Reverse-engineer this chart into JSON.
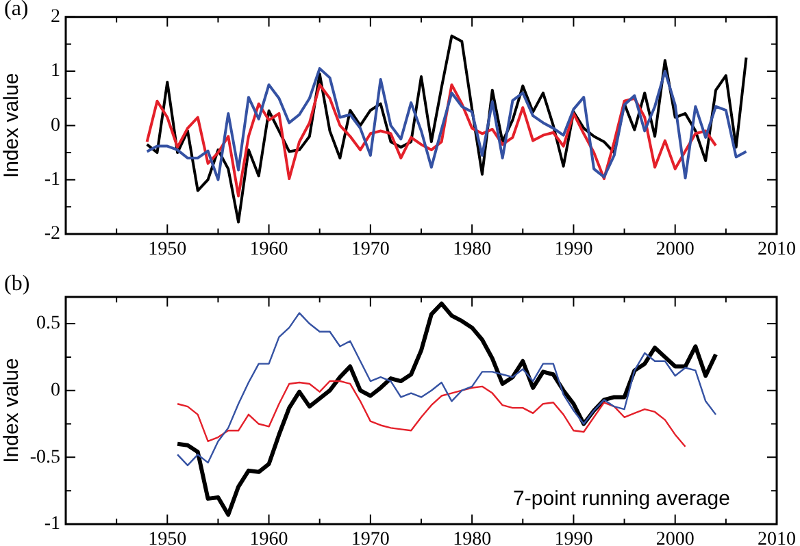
{
  "chart_data": [
    {
      "type": "line",
      "title": "(a)",
      "ylabel": "Index value",
      "x": [
        1948,
        1949,
        1950,
        1951,
        1952,
        1953,
        1954,
        1955,
        1956,
        1957,
        1958,
        1959,
        1960,
        1961,
        1962,
        1963,
        1964,
        1965,
        1966,
        1967,
        1968,
        1969,
        1970,
        1971,
        1972,
        1973,
        1974,
        1975,
        1976,
        1977,
        1978,
        1979,
        1980,
        1981,
        1982,
        1983,
        1984,
        1985,
        1986,
        1987,
        1988,
        1989,
        1990,
        1991,
        1992,
        1993,
        1994,
        1995,
        1996,
        1997,
        1998,
        1999,
        2000,
        2001,
        2002,
        2003,
        2004,
        2005,
        2006,
        2007
      ],
      "series": [
        {
          "color": "#000000",
          "values": [
            -0.35,
            -0.5,
            0.8,
            -0.5,
            -0.1,
            -1.2,
            -1.0,
            -0.45,
            -0.8,
            -1.78,
            -0.45,
            -0.93,
            0.27,
            -0.1,
            -0.48,
            -0.45,
            -0.2,
            0.95,
            -0.1,
            -0.6,
            0.28,
            0.0,
            0.28,
            0.4,
            -0.3,
            -0.4,
            -0.3,
            0.9,
            -0.3,
            0.7,
            1.65,
            1.55,
            0.3,
            -0.9,
            0.65,
            -0.3,
            0.1,
            0.73,
            0.25,
            0.6,
            0.0,
            -0.75,
            0.25,
            -0.05,
            -0.2,
            -0.3,
            -0.5,
            0.4,
            -0.08,
            0.6,
            -0.2,
            1.2,
            0.15,
            0.22,
            -0.1,
            -0.65,
            0.65,
            0.92,
            -0.4,
            1.25
          ]
        },
        {
          "color": "#e4202a",
          "values": [
            -0.3,
            0.45,
            0.15,
            -0.4,
            -0.05,
            0.15,
            -0.7,
            -0.5,
            -0.2,
            -1.3,
            -0.2,
            0.4,
            0.1,
            0.22,
            -0.98,
            -0.3,
            0.05,
            0.75,
            0.5,
            0.0,
            -0.2,
            -0.45,
            -0.15,
            -0.1,
            -0.15,
            -0.6,
            -0.22,
            -0.35,
            -0.45,
            -0.3,
            0.75,
            0.4,
            -0.05,
            -0.15,
            -0.07,
            -0.35,
            -0.22,
            0.33,
            -0.28,
            -0.18,
            -0.13,
            -0.38,
            0.22,
            -0.15,
            -0.5,
            -0.98,
            -0.3,
            0.45,
            0.5,
            0.15,
            -0.77,
            -0.28,
            -0.8,
            -0.47,
            -0.15,
            -0.1,
            -0.37,
            null,
            null,
            null
          ]
        },
        {
          "color": "#3552a3",
          "values": [
            -0.48,
            -0.38,
            -0.38,
            -0.45,
            -0.6,
            -0.6,
            -0.47,
            -1.0,
            0.22,
            -0.82,
            0.52,
            0.12,
            0.75,
            0.5,
            0.05,
            0.2,
            0.5,
            1.05,
            0.88,
            0.15,
            0.2,
            -0.05,
            -0.55,
            0.85,
            0.0,
            -0.25,
            0.42,
            -0.1,
            -0.77,
            -0.07,
            0.6,
            0.35,
            0.25,
            -0.55,
            0.44,
            -0.6,
            0.46,
            0.6,
            0.18,
            0.05,
            -0.05,
            -0.18,
            0.3,
            0.52,
            -0.8,
            -0.95,
            -0.55,
            0.38,
            0.55,
            -0.1,
            0.35,
            1.0,
            0.38,
            -0.97,
            0.35,
            -0.22,
            0.35,
            0.28,
            -0.58,
            -0.48
          ]
        }
      ],
      "xlim": [
        1940,
        2010
      ],
      "xticks": [
        {
          "value": 1940,
          "label": null
        },
        {
          "value": 1945,
          "label": null
        },
        1950,
        {
          "value": 1955,
          "label": null
        },
        1960,
        {
          "value": 1965,
          "label": null
        },
        1970,
        {
          "value": 1975,
          "label": null
        },
        1980,
        {
          "value": 1985,
          "label": null
        },
        1990,
        {
          "value": 1995,
          "label": null
        },
        2000,
        {
          "value": 2005,
          "label": null
        },
        2010
      ],
      "ylim": [
        -2,
        2
      ],
      "yticks": [
        -2,
        {
          "value": -1.5,
          "label": null
        },
        -1,
        {
          "value": -0.5,
          "label": null
        },
        0,
        {
          "value": 0.5,
          "label": null
        },
        1,
        {
          "value": 1.5,
          "label": null
        },
        2
      ]
    },
    {
      "type": "line",
      "title": "(b)",
      "ylabel": "Index value",
      "x": [
        1951,
        1952,
        1953,
        1954,
        1955,
        1956,
        1957,
        1958,
        1959,
        1960,
        1961,
        1962,
        1963,
        1964,
        1965,
        1966,
        1967,
        1968,
        1969,
        1970,
        1971,
        1972,
        1973,
        1974,
        1975,
        1976,
        1977,
        1978,
        1979,
        1980,
        1981,
        1982,
        1983,
        1984,
        1985,
        1986,
        1987,
        1988,
        1989,
        1990,
        1991,
        1992,
        1993,
        1994,
        1995,
        1996,
        1997,
        1998,
        1999,
        2000,
        2001,
        2002,
        2003,
        2004
      ],
      "series": [
        {
          "color": "#000000",
          "values": [
            -0.4,
            -0.41,
            -0.46,
            -0.81,
            -0.8,
            -0.93,
            -0.72,
            -0.6,
            -0.61,
            -0.55,
            -0.33,
            -0.13,
            -0.01,
            -0.12,
            -0.06,
            0.0,
            0.1,
            0.18,
            0.0,
            -0.04,
            0.02,
            0.09,
            0.07,
            0.12,
            0.3,
            0.57,
            0.65,
            0.56,
            0.52,
            0.47,
            0.38,
            0.24,
            0.05,
            0.1,
            0.22,
            0.02,
            0.14,
            0.12,
            0.0,
            -0.1,
            -0.25,
            -0.15,
            -0.07,
            -0.05,
            -0.05,
            0.15,
            0.2,
            0.32,
            0.25,
            0.18,
            0.18,
            0.33,
            0.11,
            0.27
          ]
        },
        {
          "color": "#e4202a",
          "values": [
            -0.1,
            -0.12,
            -0.18,
            -0.38,
            -0.35,
            -0.3,
            -0.3,
            -0.18,
            -0.25,
            -0.27,
            -0.1,
            0.05,
            0.06,
            0.05,
            -0.01,
            0.07,
            0.07,
            0.05,
            -0.08,
            -0.23,
            -0.26,
            -0.28,
            -0.29,
            -0.3,
            -0.2,
            -0.11,
            -0.04,
            -0.02,
            0.0,
            0.02,
            0.03,
            -0.02,
            -0.11,
            -0.13,
            -0.13,
            -0.17,
            -0.1,
            -0.09,
            -0.18,
            -0.3,
            -0.31,
            -0.2,
            -0.09,
            -0.12,
            -0.2,
            -0.17,
            -0.14,
            -0.16,
            -0.22,
            -0.33,
            -0.42,
            null,
            null,
            null
          ]
        },
        {
          "color": "#3552a3",
          "values": [
            -0.48,
            -0.56,
            -0.48,
            -0.54,
            -0.38,
            -0.28,
            -0.1,
            0.06,
            0.2,
            0.2,
            0.4,
            0.47,
            0.58,
            0.5,
            0.44,
            0.44,
            0.33,
            0.37,
            0.22,
            0.07,
            0.1,
            0.07,
            -0.05,
            -0.02,
            -0.05,
            0.0,
            0.06,
            -0.08,
            0.0,
            0.03,
            0.14,
            0.14,
            0.12,
            0.1,
            0.16,
            0.07,
            0.2,
            0.2,
            -0.03,
            -0.15,
            -0.25,
            -0.15,
            -0.07,
            -0.12,
            -0.14,
            0.15,
            0.28,
            0.22,
            0.22,
            0.11,
            0.17,
            0.15,
            -0.08,
            -0.18
          ]
        }
      ],
      "xlim": [
        1940,
        2010
      ],
      "xticks": [
        {
          "value": 1940,
          "label": null
        },
        {
          "value": 1945,
          "label": null
        },
        1950,
        {
          "value": 1955,
          "label": null
        },
        1960,
        {
          "value": 1965,
          "label": null
        },
        1970,
        {
          "value": 1975,
          "label": null
        },
        1980,
        {
          "value": 1985,
          "label": null
        },
        1990,
        {
          "value": 1995,
          "label": null
        },
        2000,
        {
          "value": 2005,
          "label": null
        },
        2010
      ],
      "ylim": [
        -1,
        0.7
      ],
      "yticks": [
        -1,
        {
          "value": -0.75,
          "label": null
        },
        -0.5,
        {
          "value": -0.25,
          "label": null
        },
        0,
        {
          "value": 0.25,
          "label": null
        },
        0.5
      ],
      "annotations": [
        "7-point running average"
      ]
    }
  ]
}
